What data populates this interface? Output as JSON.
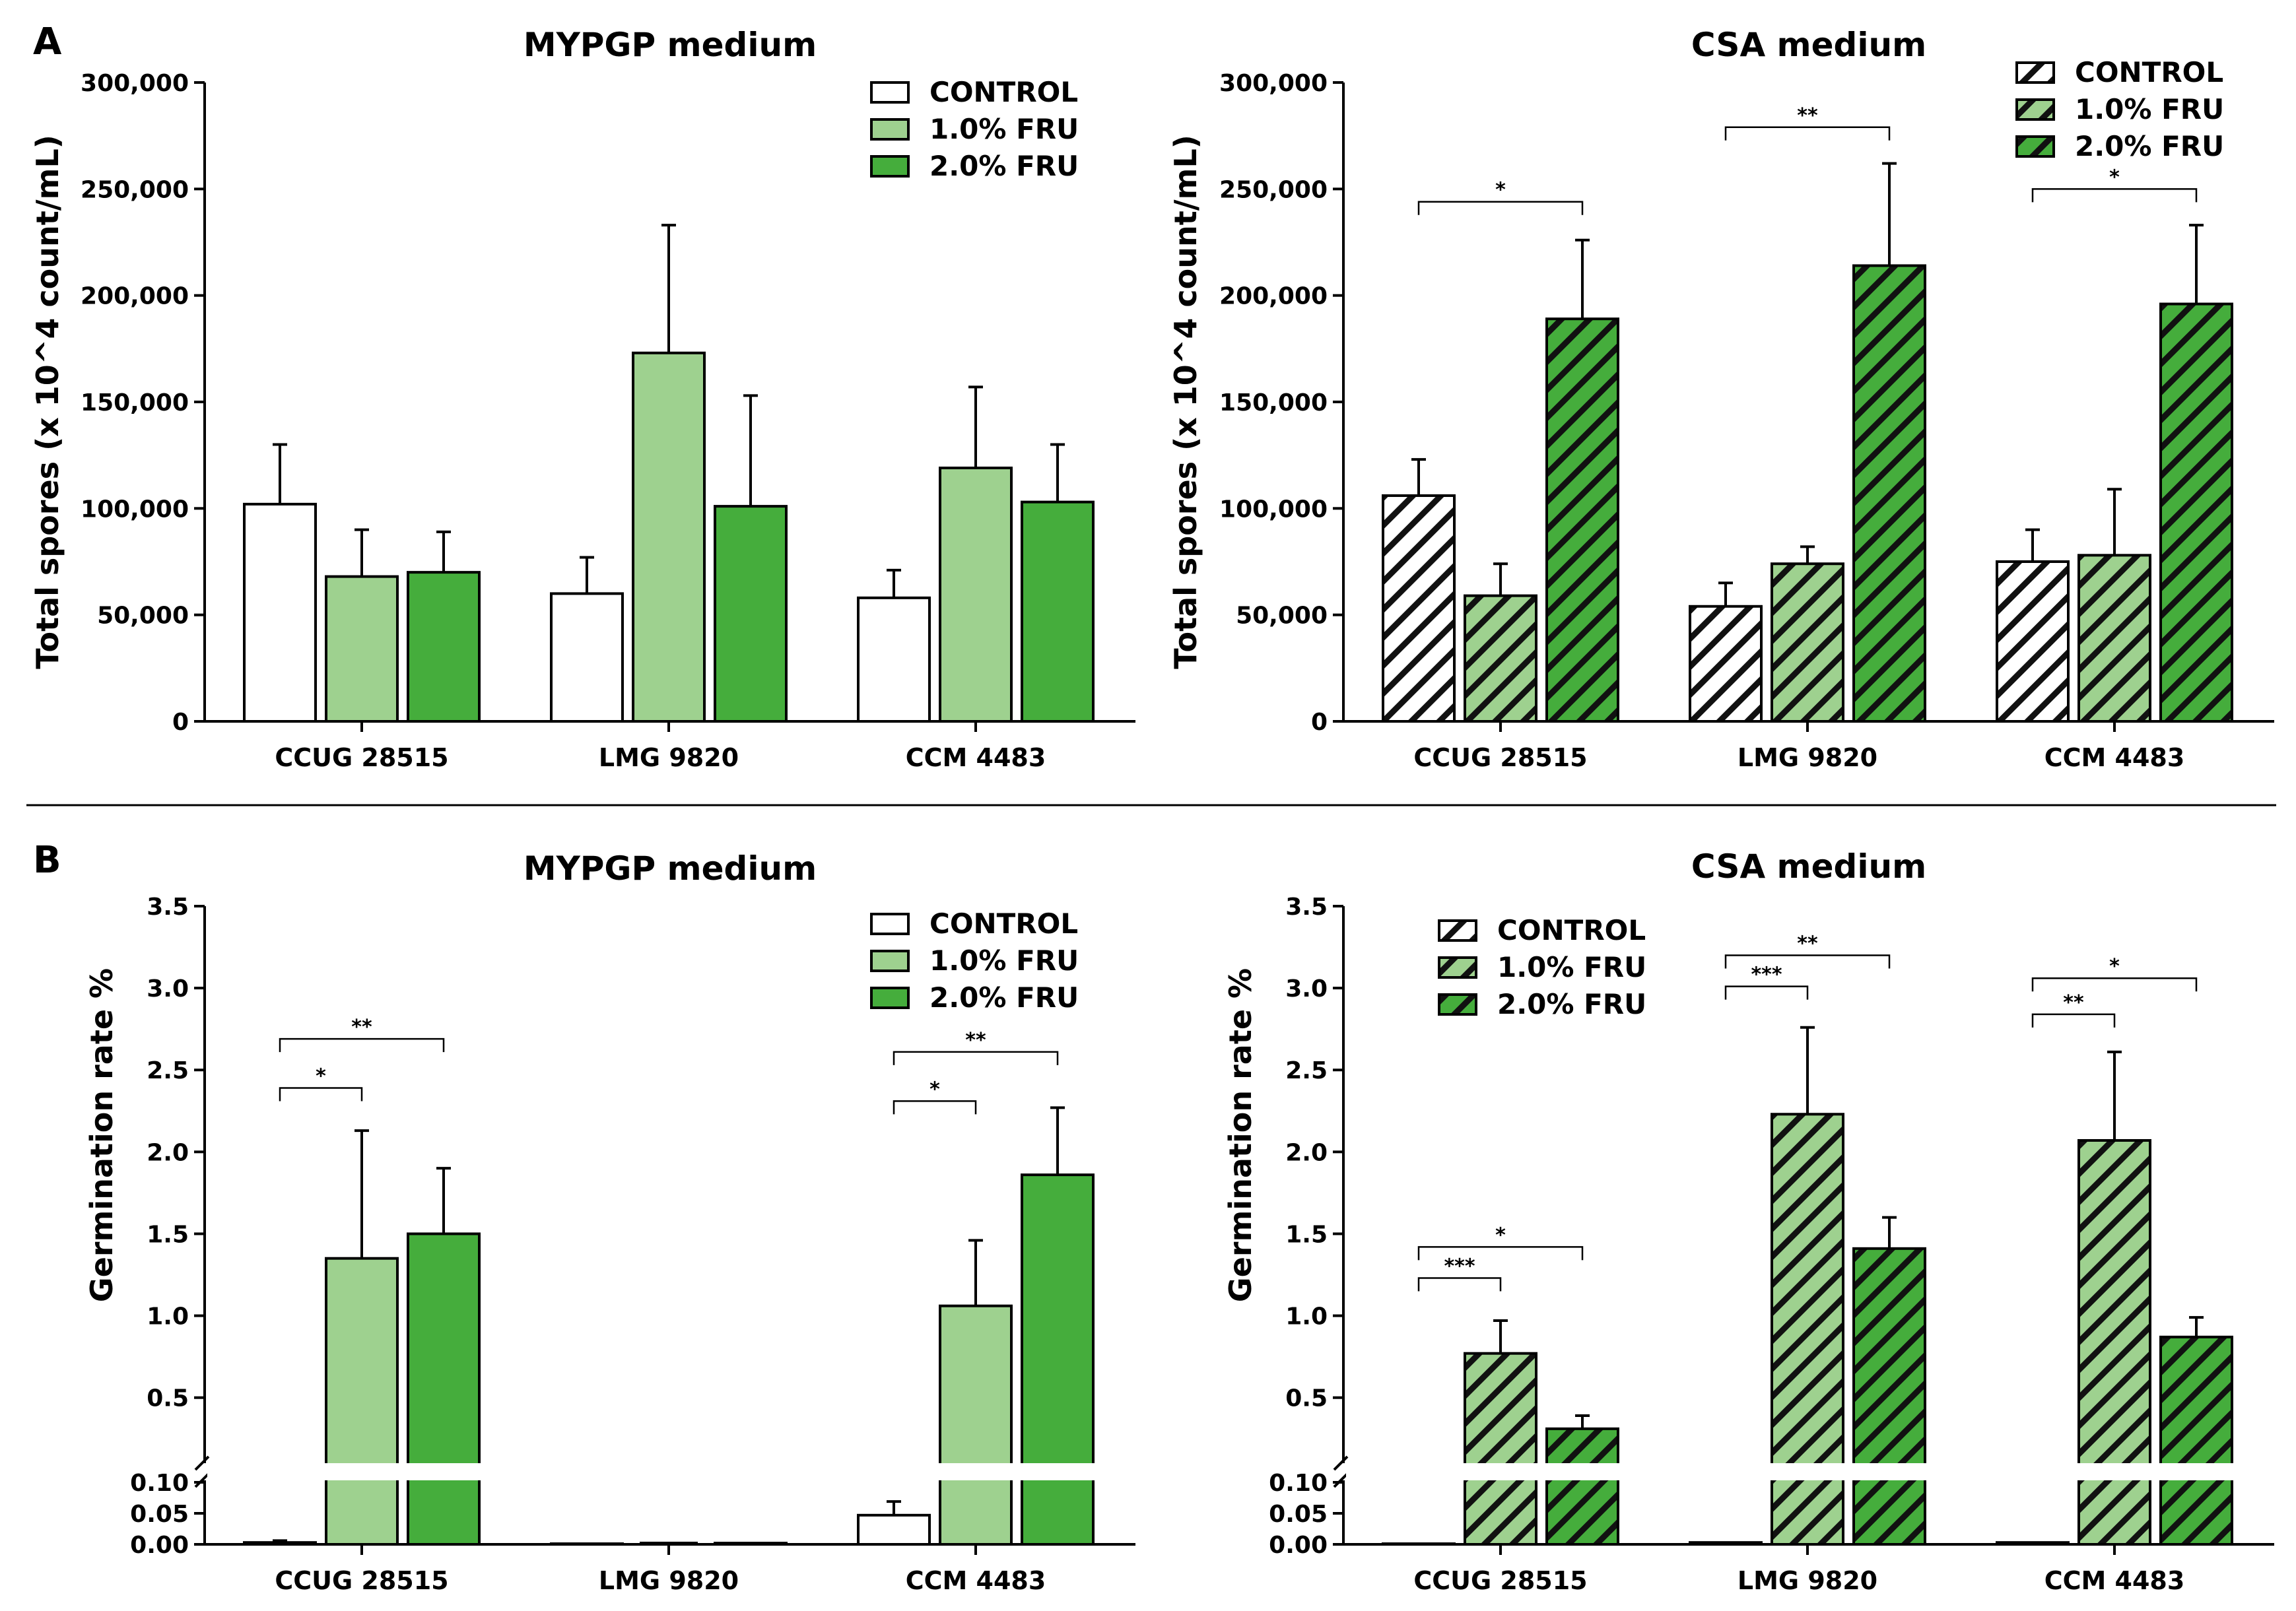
{
  "panel_labels": [
    "A",
    "B"
  ],
  "colors": {
    "control": "#ffffff",
    "fru1": "#9ed18f",
    "fru2": "#45ad3c",
    "stroke": "#000000"
  },
  "chart_data": [
    {
      "id": "A-left",
      "type": "bar",
      "title": "MYPGP medium",
      "ylabel": "Total spores (x 10^4 count/mL)",
      "ylim": [
        0,
        300000
      ],
      "yticks": [
        "0",
        "50,000",
        "100,000",
        "150,000",
        "200,000",
        "250,000",
        "300,000"
      ],
      "categories": [
        "CCUG 28515",
        "LMG 9820",
        "CCM 4483"
      ],
      "series": [
        {
          "name": "CONTROL",
          "values": [
            102000,
            60000,
            58000
          ],
          "errors": [
            28000,
            17000,
            13000
          ]
        },
        {
          "name": "1.0% FRU",
          "values": [
            68000,
            173000,
            119000
          ],
          "errors": [
            22000,
            60000,
            38000
          ]
        },
        {
          "name": "2.0% FRU",
          "values": [
            70000,
            101000,
            103000
          ],
          "errors": [
            19000,
            52000,
            27000
          ]
        }
      ],
      "legend": {
        "position": "top-right",
        "hatched": false
      },
      "significance": []
    },
    {
      "id": "A-right",
      "type": "bar",
      "title": "CSA medium",
      "ylabel": "Total spores (x 10^4 count/mL)",
      "ylim": [
        0,
        300000
      ],
      "yticks": [
        "0",
        "50,000",
        "100,000",
        "150,000",
        "200,000",
        "250,000",
        "300,000"
      ],
      "categories": [
        "CCUG 28515",
        "LMG 9820",
        "CCM 4483"
      ],
      "series": [
        {
          "name": "CONTROL",
          "values": [
            106000,
            54000,
            75000
          ],
          "errors": [
            17000,
            11000,
            15000
          ]
        },
        {
          "name": "1.0% FRU",
          "values": [
            59000,
            74000,
            78000
          ],
          "errors": [
            15000,
            8000,
            31000
          ]
        },
        {
          "name": "2.0% FRU",
          "values": [
            189000,
            214000,
            196000
          ],
          "errors": [
            37000,
            48000,
            37000
          ]
        }
      ],
      "legend": {
        "position": "top-right",
        "hatched": true
      },
      "significance": [
        {
          "category": 0,
          "from": 0,
          "to": 2,
          "level": 244000,
          "label": "*"
        },
        {
          "category": 1,
          "from": 0,
          "to": 2,
          "level": 279000,
          "label": "**"
        },
        {
          "category": 2,
          "from": 0,
          "to": 2,
          "level": 250000,
          "label": "*"
        }
      ]
    },
    {
      "id": "B-left",
      "type": "bar",
      "title": "MYPGP medium",
      "ylabel": "Germination rate %",
      "axis_break": {
        "lower": [
          0,
          0.1
        ],
        "upper": [
          0.1,
          3.5
        ]
      },
      "yticks_lower": [
        "0.00",
        "0.05",
        "0.10"
      ],
      "yticks_upper": [
        "0.5",
        "1.0",
        "1.5",
        "2.0",
        "2.5",
        "3.0",
        "3.5"
      ],
      "categories": [
        "CCUG 28515",
        "LMG 9820",
        "CCM 4483"
      ],
      "series": [
        {
          "name": "CONTROL",
          "values": [
            0.003,
            0.001,
            0.047
          ],
          "errors": [
            0.003,
            0.0,
            0.022
          ]
        },
        {
          "name": "1.0% FRU",
          "values": [
            1.35,
            0.0,
            1.06
          ],
          "errors": [
            0.78,
            0.0,
            0.4
          ]
        },
        {
          "name": "2.0% FRU",
          "values": [
            1.5,
            0.002,
            1.86
          ],
          "errors": [
            0.4,
            0.0,
            0.41
          ]
        }
      ],
      "legend": {
        "position": "top-right",
        "hatched": false
      },
      "significance": [
        {
          "category": 0,
          "from": 0,
          "to": 1,
          "level": 2.39,
          "label": "*"
        },
        {
          "category": 0,
          "from": 0,
          "to": 2,
          "level": 2.69,
          "label": "**"
        },
        {
          "category": 2,
          "from": 0,
          "to": 1,
          "level": 2.31,
          "label": "*"
        },
        {
          "category": 2,
          "from": 0,
          "to": 2,
          "level": 2.61,
          "label": "**"
        }
      ]
    },
    {
      "id": "B-right",
      "type": "bar",
      "title": "CSA medium",
      "ylabel": "Germination rate %",
      "axis_break": {
        "lower": [
          0,
          0.1
        ],
        "upper": [
          0.1,
          3.5
        ]
      },
      "yticks_lower": [
        "0.00",
        "0.05",
        "0.10"
      ],
      "yticks_upper": [
        "0.5",
        "1.0",
        "1.5",
        "2.0",
        "2.5",
        "3.0",
        "3.5"
      ],
      "categories": [
        "CCUG 28515",
        "LMG 9820",
        "CCM 4483"
      ],
      "series": [
        {
          "name": "CONTROL",
          "values": [
            0.001,
            0.003,
            0.003
          ],
          "errors": [
            0.0,
            0.0,
            0.0
          ]
        },
        {
          "name": "1.0% FRU",
          "values": [
            0.77,
            2.23,
            2.07
          ],
          "errors": [
            0.2,
            0.53,
            0.54
          ]
        },
        {
          "name": "2.0% FRU",
          "values": [
            0.31,
            1.41,
            0.87
          ],
          "errors": [
            0.08,
            0.19,
            0.12
          ]
        }
      ],
      "legend": {
        "position": "top-left",
        "hatched": true
      },
      "significance": [
        {
          "category": 0,
          "from": 0,
          "to": 1,
          "level": 1.23,
          "label": "***"
        },
        {
          "category": 0,
          "from": 0,
          "to": 2,
          "level": 1.42,
          "label": "*"
        },
        {
          "category": 1,
          "from": 0,
          "to": 1,
          "level": 3.01,
          "label": "***"
        },
        {
          "category": 1,
          "from": 0,
          "to": 2,
          "level": 3.2,
          "label": "**"
        },
        {
          "category": 2,
          "from": 0,
          "to": 1,
          "level": 2.84,
          "label": "**"
        },
        {
          "category": 2,
          "from": 0,
          "to": 2,
          "level": 3.06,
          "label": "*"
        }
      ]
    }
  ]
}
